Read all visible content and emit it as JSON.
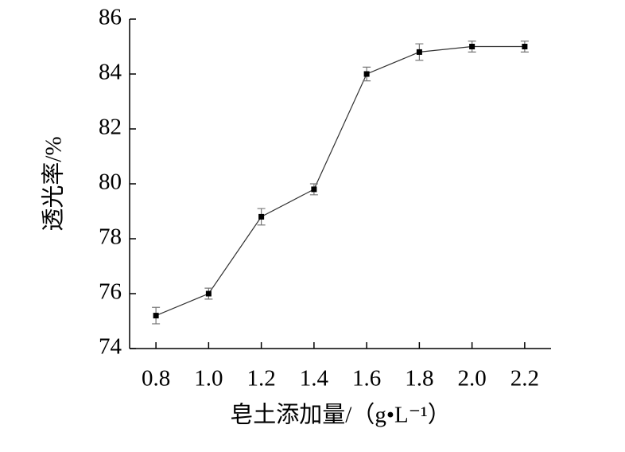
{
  "chart_data": {
    "type": "line",
    "xlabel": "皂土添加量/（g•L⁻¹）",
    "ylabel": "透光率/%",
    "x": [
      0.8,
      1.0,
      1.2,
      1.4,
      1.6,
      1.8,
      2.0,
      2.2
    ],
    "series": [
      {
        "color": "#000000",
        "values": [
          75.2,
          76.0,
          78.8,
          79.8,
          84.0,
          84.8,
          85.0,
          85.0
        ],
        "errors": [
          0.3,
          0.2,
          0.3,
          0.2,
          0.25,
          0.3,
          0.2,
          0.2
        ]
      }
    ],
    "xlim": [
      0.7,
      2.3
    ],
    "xticks": [
      0.8,
      {
        "value": 1,
        "label": "1.0"
      },
      1.2,
      1.4,
      1.6,
      1.8,
      {
        "value": 2,
        "label": "2.0"
      },
      2.2
    ],
    "ylim": [
      74,
      86
    ],
    "yticks": [
      74,
      76,
      78,
      80,
      82,
      84,
      86
    ]
  }
}
